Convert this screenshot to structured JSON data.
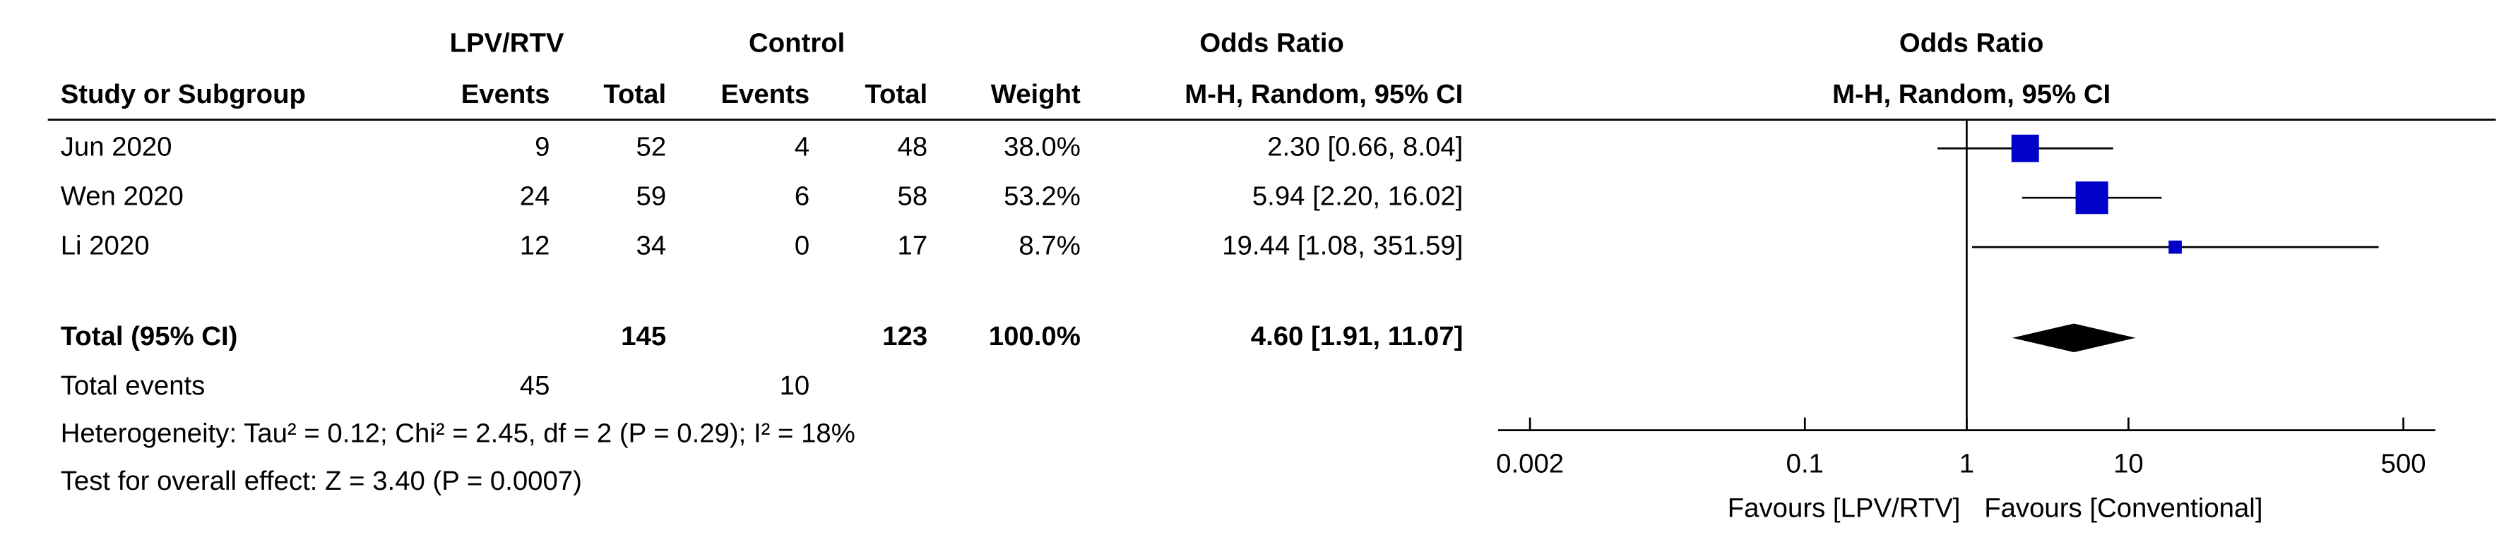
{
  "columns": {
    "group1": "LPV/RTV",
    "group2": "Control",
    "effect": "Odds Ratio",
    "study": "Study or Subgroup",
    "events1": "Events",
    "total1": "Total",
    "events2": "Events",
    "total2": "Total",
    "weight": "Weight",
    "method": "M-H, Random, 95% CI"
  },
  "studies": [
    {
      "name": "Jun 2020",
      "events1": 9,
      "total1": 52,
      "events2": 4,
      "total2": 48,
      "weight": 38.0,
      "weight_label": "38.0%",
      "or": 2.3,
      "ci_low": 0.66,
      "ci_high": 8.04,
      "ci_label": "2.30 [0.66, 8.04]"
    },
    {
      "name": "Wen 2020",
      "events1": 24,
      "total1": 59,
      "events2": 6,
      "total2": 58,
      "weight": 53.2,
      "weight_label": "53.2%",
      "or": 5.94,
      "ci_low": 2.2,
      "ci_high": 16.02,
      "ci_label": "5.94 [2.20, 16.02]"
    },
    {
      "name": "Li 2020",
      "events1": 12,
      "total1": 34,
      "events2": 0,
      "total2": 17,
      "weight": 8.7,
      "weight_label": "8.7%",
      "or": 19.44,
      "ci_low": 1.08,
      "ci_high": 351.59,
      "ci_label": "19.44 [1.08, 351.59]"
    }
  ],
  "total": {
    "name": "Total (95% CI)",
    "total1": 145,
    "total2": 123,
    "weight": 100.0,
    "weight_label": "100.0%",
    "or": 4.6,
    "ci_low": 1.91,
    "ci_high": 11.07,
    "ci_label": "4.60 [1.91, 11.07]"
  },
  "total_events": {
    "name": "Total events",
    "events1": 45,
    "events2": 10
  },
  "heterogeneity": "Heterogeneity: Tau² = 0.12; Chi² = 2.45, df = 2 (P = 0.29); I² = 18%",
  "overall_effect": "Test for overall effect: Z = 3.40 (P = 0.0007)",
  "plot": {
    "title": "Odds Ratio",
    "subtitle": "M-H, Random, 95% CI",
    "scale": "log",
    "xlim": [
      0.002,
      500
    ],
    "xticks": [
      0.002,
      0.1,
      1,
      10,
      500
    ],
    "favours_left": "Favours [LPV/RTV]",
    "favours_right": "Favours [Conventional]",
    "color": "#0000c8"
  }
}
